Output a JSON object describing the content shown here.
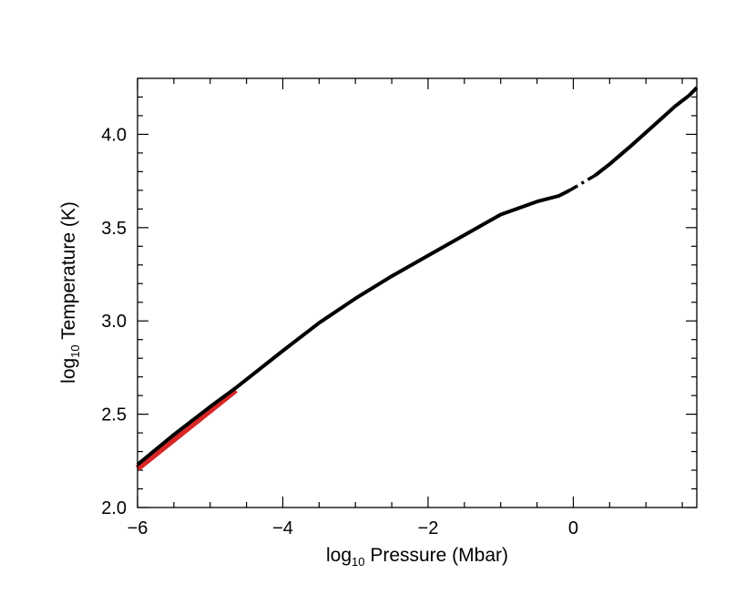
{
  "chart_data": {
    "type": "line",
    "title": "",
    "xlabel": {
      "prefix": "log",
      "sub": "10",
      "text": " Pressure (Mbar)"
    },
    "ylabel": {
      "prefix": "log",
      "sub": "10",
      "text": " Temperature (K)"
    },
    "xlim": [
      -6.0,
      1.7
    ],
    "ylim": [
      2.0,
      4.3
    ],
    "xticks": [
      {
        "value": -6,
        "label": "−6"
      },
      {
        "value": -4,
        "label": "−4"
      },
      {
        "value": -2,
        "label": "−2"
      },
      {
        "value": 0,
        "label": "0"
      }
    ],
    "yticks": [
      {
        "value": 2.0,
        "label": "2.0"
      },
      {
        "value": 2.5,
        "label": "2.5"
      },
      {
        "value": 3.0,
        "label": "3.0"
      },
      {
        "value": 3.5,
        "label": "3.5"
      },
      {
        "value": 4.0,
        "label": "4.0"
      }
    ],
    "x_minor_step": 0.5,
    "y_minor_step": 0.1,
    "grid": false,
    "series": [
      {
        "color": "#d62728",
        "style": "solid",
        "x": [
          -6.0,
          -4.65
        ],
        "y": [
          2.21,
          2.63
        ]
      },
      {
        "color": "#000000",
        "style": "solid",
        "x": [
          -6.0,
          -5.5,
          -5.0,
          -4.65,
          -4.0,
          -3.5,
          -3.0,
          -2.5,
          -2.0,
          -1.5,
          -1.0,
          -0.5,
          -0.2,
          -0.05
        ],
        "y": [
          2.23,
          2.39,
          2.54,
          2.64,
          2.84,
          2.99,
          3.12,
          3.24,
          3.35,
          3.46,
          3.57,
          3.64,
          3.67,
          3.7
        ]
      },
      {
        "color": "#000000",
        "style": "dashdot",
        "x": [
          -0.05,
          0.3
        ],
        "y": [
          3.7,
          3.78
        ]
      },
      {
        "color": "#000000",
        "style": "solid",
        "x": [
          0.3,
          0.5,
          0.8,
          1.0,
          1.2,
          1.4,
          1.6,
          1.7
        ],
        "y": [
          3.78,
          3.84,
          3.94,
          4.01,
          4.08,
          4.15,
          4.21,
          4.25
        ]
      }
    ]
  }
}
